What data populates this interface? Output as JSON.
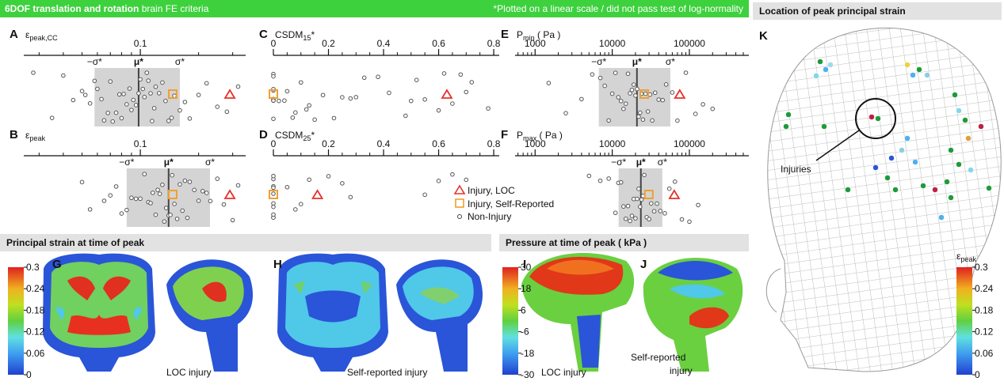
{
  "figure": {
    "header_title": "6DOF translation and rotation",
    "header_subtitle": "brain FE criteria",
    "header_note": "*Plotted on a linear scale / did not pass test of log-normality",
    "location_title": "Location of peak principal strain",
    "strain_section": "Principal strain at time of peak",
    "pressure_section": "Pressure at time of peak ( kPa )",
    "panels": [
      "G",
      "H",
      "I",
      "J",
      "K"
    ],
    "captions": [
      "LOC injury",
      "Self-reported injury",
      "LOC injury",
      "Self-reported",
      "injury"
    ],
    "injuries_label": "Injuries",
    "legend": [
      "Injury, LOC",
      "Injury, Self-Reported",
      "Non-Injury"
    ],
    "strain_colorbar": {
      "lim": [
        0,
        0.3
      ],
      "ticks": [
        0.3,
        0.24,
        0.18,
        0.12,
        0.06,
        0
      ]
    },
    "pressure_colorbar": {
      "lim": [
        -30,
        30
      ],
      "ticks": [
        30,
        18,
        6,
        -6,
        -18,
        -30
      ]
    },
    "peak_colorbar": {
      "title": {
        "main": "ε",
        "sub": "peak"
      },
      "lim": [
        0,
        0.3
      ],
      "ticks": [
        0.3,
        0.24,
        0.18,
        0.12,
        0.06,
        0
      ]
    }
  },
  "chart_data": [
    {
      "type": "strip",
      "panel": "A",
      "title": {
        "main": "ε",
        "sub": "peak,CC"
      },
      "xscale": "log",
      "xlim": [
        0.025,
        0.35
      ],
      "xticks": [
        0.1
      ],
      "stats": {
        "minus_sigma": 0.058,
        "mu": 0.098,
        "plus_sigma": 0.16,
        "labels": [
          "−σ*",
          "μ*",
          "σ*"
        ]
      },
      "series": [
        {
          "color": "#e8302a",
          "values": [
            0.29
          ]
        },
        {
          "color": "#f0a030",
          "values": [
            0.147
          ]
        },
        {
          "color": "#555555",
          "values": [
            0.028,
            0.035,
            0.04,
            0.045,
            0.05,
            0.052,
            0.055,
            0.058,
            0.06,
            0.063,
            0.065,
            0.068,
            0.07,
            0.072,
            0.075,
            0.078,
            0.08,
            0.082,
            0.085,
            0.088,
            0.09,
            0.092,
            0.095,
            0.098,
            0.1,
            0.103,
            0.105,
            0.108,
            0.11,
            0.113,
            0.115,
            0.118,
            0.12,
            0.125,
            0.13,
            0.135,
            0.14,
            0.145,
            0.15,
            0.16,
            0.17,
            0.18,
            0.2,
            0.22,
            0.25,
            0.28,
            0.32
          ]
        }
      ]
    },
    {
      "type": "strip",
      "panel": "B",
      "title": {
        "main": "ε",
        "sub": "peak"
      },
      "xscale": "log",
      "xlim": [
        0.025,
        0.35
      ],
      "xticks": [
        0.1
      ],
      "stats": {
        "minus_sigma": 0.085,
        "mu": 0.14,
        "plus_sigma": 0.229,
        "labels": [
          "−σ*",
          "μ*",
          "σ*"
        ]
      },
      "series": [
        {
          "color": "#e8302a",
          "values": [
            0.29
          ]
        },
        {
          "color": "#f0a030",
          "values": [
            0.147
          ]
        },
        {
          "color": "#555555",
          "values": [
            0.05,
            0.055,
            0.065,
            0.07,
            0.075,
            0.08,
            0.085,
            0.09,
            0.095,
            0.1,
            0.105,
            0.11,
            0.113,
            0.116,
            0.12,
            0.123,
            0.126,
            0.13,
            0.133,
            0.136,
            0.14,
            0.143,
            0.146,
            0.15,
            0.155,
            0.16,
            0.165,
            0.17,
            0.175,
            0.18,
            0.19,
            0.2,
            0.21,
            0.22,
            0.23,
            0.25,
            0.27,
            0.3,
            0.32
          ]
        }
      ]
    },
    {
      "type": "strip",
      "panel": "C",
      "title": {
        "main": "CSDM",
        "sub": "15",
        "suffix": "*"
      },
      "xscale": "linear",
      "xlim": [
        0,
        0.82
      ],
      "xticks": [
        0,
        0.2,
        0.4,
        0.6,
        0.8
      ],
      "series": [
        {
          "color": "#e8302a",
          "values": [
            0.63
          ]
        },
        {
          "color": "#f0a030",
          "values": [
            0
          ]
        },
        {
          "color": "#555555",
          "values": [
            0,
            0,
            0,
            0,
            0,
            0,
            0,
            0,
            0.02,
            0.04,
            0.05,
            0.07,
            0.08,
            0.1,
            0.12,
            0.13,
            0.15,
            0.18,
            0.22,
            0.25,
            0.28,
            0.3,
            0.33,
            0.38,
            0.42,
            0.48,
            0.5,
            0.52,
            0.55,
            0.6,
            0.62,
            0.65,
            0.68,
            0.7,
            0.72,
            0.78
          ]
        }
      ]
    },
    {
      "type": "strip",
      "panel": "D",
      "title": {
        "main": "CSDM",
        "sub": "25",
        "suffix": "*"
      },
      "xscale": "linear",
      "xlim": [
        0,
        0.82
      ],
      "xticks": [
        0,
        0.2,
        0.4,
        0.6,
        0.8
      ],
      "series": [
        {
          "color": "#e8302a",
          "values": [
            0.16
          ]
        },
        {
          "color": "#f0a030",
          "values": [
            0
          ]
        },
        {
          "color": "#555555",
          "values": [
            0,
            0,
            0,
            0,
            0,
            0,
            0,
            0,
            0,
            0,
            0.05,
            0.08,
            0.1,
            0.13,
            0.2,
            0.25,
            0.28,
            0.55,
            0.6,
            0.65,
            0.7
          ]
        }
      ]
    },
    {
      "type": "strip",
      "panel": "E",
      "title": {
        "main": "P",
        "sub": "min",
        "suffix": " ( Pa )"
      },
      "xscale": "log",
      "xlim": [
        550,
        590000
      ],
      "xticks": [
        1000,
        10000,
        100000
      ],
      "stats": {
        "minus_sigma": 6700,
        "mu": 20900,
        "plus_sigma": 56600,
        "labels": [
          "−σ*",
          "μ*",
          "σ*"
        ]
      },
      "series": [
        {
          "color": "#e8302a",
          "values": [
            75000
          ]
        },
        {
          "color": "#f0a030",
          "values": [
            26000
          ]
        },
        {
          "color": "#555555",
          "values": [
            1500,
            2500,
            4000,
            5500,
            7000,
            8000,
            9000,
            10000,
            11000,
            12000,
            13000,
            14000,
            15000,
            16000,
            17000,
            18000,
            19000,
            20000,
            21000,
            22000,
            23000,
            24000,
            25000,
            27000,
            29000,
            31000,
            33000,
            36000,
            40000,
            45000,
            50000,
            60000,
            70000,
            90000,
            120000,
            150000,
            200000
          ]
        }
      ]
    },
    {
      "type": "strip",
      "panel": "F",
      "title": {
        "main": "P",
        "sub": "max",
        "suffix": " ( Pa )"
      },
      "xscale": "log",
      "xlim": [
        550,
        590000
      ],
      "xticks": [
        1000,
        10000,
        100000
      ],
      "stats": {
        "minus_sigma": 12100,
        "mu": 23500,
        "plus_sigma": 44600,
        "labels": [
          "−σ*",
          "μ*",
          "σ*"
        ]
      },
      "series": [
        {
          "color": "#e8302a",
          "values": [
            63700
          ]
        },
        {
          "color": "#f0a030",
          "values": [
            29800
          ]
        },
        {
          "color": "#555555",
          "values": [
            5000,
            7000,
            9000,
            11000,
            12000,
            13000,
            14000,
            15000,
            16000,
            17000,
            18000,
            19000,
            20000,
            21000,
            22000,
            23000,
            24000,
            25000,
            26000,
            28000,
            30000,
            32000,
            35000,
            38000,
            42000,
            48000,
            55000,
            65000,
            80000,
            100000,
            130000
          ]
        }
      ]
    }
  ]
}
